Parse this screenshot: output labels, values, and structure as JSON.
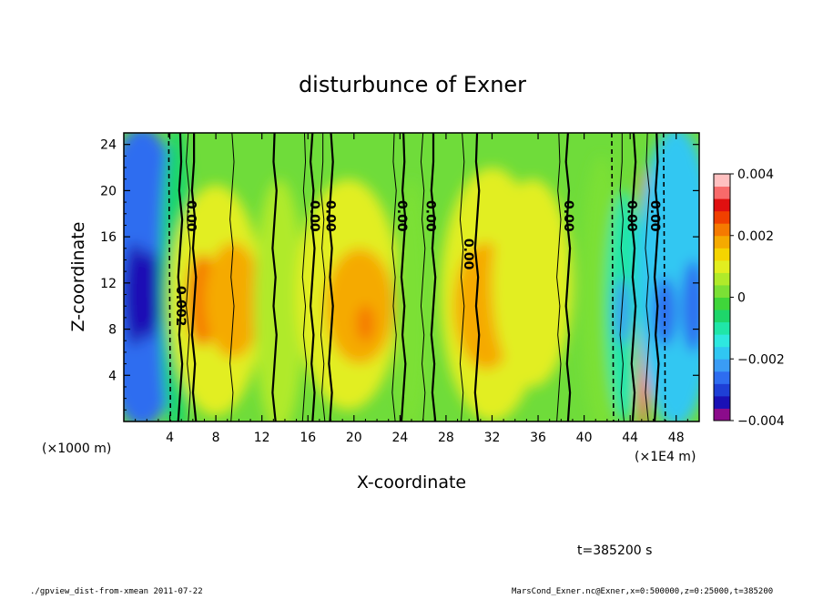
{
  "chart_data": {
    "type": "heatmap",
    "title": "disturbunce of Exner",
    "xlabel": "X-coordinate",
    "ylabel": "Z-coordinate",
    "x_unit_left": "(×1000 m)",
    "x_unit_right": "(×1E4 m)",
    "xlim": [
      0,
      50
    ],
    "ylim": [
      0,
      25
    ],
    "x_ticks": [
      4,
      8,
      12,
      16,
      20,
      24,
      28,
      32,
      36,
      40,
      44,
      48
    ],
    "x_tick_labels": [
      "4",
      "8",
      "12",
      "16",
      "20",
      "24",
      "28",
      "32",
      "36",
      "40",
      "44",
      "48"
    ],
    "y_ticks": [
      4,
      8,
      12,
      16,
      20,
      24
    ],
    "y_tick_labels": [
      "4",
      "8",
      "12",
      "16",
      "20",
      "24"
    ],
    "colorbar": {
      "range": [
        -0.004,
        0.004
      ],
      "ticks": [
        0.004,
        0.002,
        0,
        -0.002,
        -0.004
      ],
      "tick_labels": [
        "0.004",
        "0.002",
        "0",
        "−0.002",
        "−0.004"
      ],
      "colors": [
        "#8b0b8b",
        "#1a10b5",
        "#1e3fd6",
        "#2e6df0",
        "#3a9cf5",
        "#30c7f2",
        "#2ee8e0",
        "#20e6a8",
        "#1ed66a",
        "#3fd63a",
        "#7be035",
        "#b0ea2a",
        "#e2ee20",
        "#f5d400",
        "#f5aa00",
        "#f57a00",
        "#f04000",
        "#e01010",
        "#f86a6a",
        "#ffc0c0"
      ]
    },
    "contour_labels": [
      {
        "text": "0.00",
        "x": 5.5,
        "y": 17.8,
        "rot": 90
      },
      {
        "text": "0.002",
        "x": 4.6,
        "y": 10.0,
        "rot": 90
      },
      {
        "text": "0.00",
        "x": 16.2,
        "y": 17.8,
        "rot": 90
      },
      {
        "text": "0.00",
        "x": 17.6,
        "y": 17.8,
        "rot": 90
      },
      {
        "text": "0.00",
        "x": 23.8,
        "y": 17.8,
        "rot": 90
      },
      {
        "text": "0.00",
        "x": 26.3,
        "y": 17.8,
        "rot": 90
      },
      {
        "text": "0.00",
        "x": 29.6,
        "y": 14.5,
        "rot": 90
      },
      {
        "text": "0.00",
        "x": 38.3,
        "y": 17.8,
        "rot": 90
      },
      {
        "text": "0.00",
        "x": 43.8,
        "y": 17.8,
        "rot": 90
      },
      {
        "text": "0.00",
        "x": 45.8,
        "y": 17.8,
        "rot": 90
      }
    ],
    "field_blobs": [
      {
        "x": 1.6,
        "z": 12.5,
        "rx": 4.0,
        "rz": 13.0,
        "level": -0.0026
      },
      {
        "x": 1.0,
        "z": 11.0,
        "rx": 1.0,
        "rz": 4.5,
        "level": -0.0034
      },
      {
        "x": 2.3,
        "z": 11.0,
        "rx": 0.8,
        "rz": 4.0,
        "level": -0.0034
      },
      {
        "x": 3.6,
        "z": 11.5,
        "rx": 0.8,
        "rz": 3.5,
        "level": -0.0034
      },
      {
        "x": 4.6,
        "z": 12.0,
        "rx": 1.4,
        "rz": 14.0,
        "level": -0.0008
      },
      {
        "x": 8.0,
        "z": 10.5,
        "rx": 4.0,
        "rz": 10.0,
        "level": 0.0012
      },
      {
        "x": 6.8,
        "z": 10.5,
        "rx": 1.3,
        "rz": 4.0,
        "level": 0.0022
      },
      {
        "x": 9.5,
        "z": 10.5,
        "rx": 2.5,
        "rz": 5.0,
        "level": 0.0016
      },
      {
        "x": 13.5,
        "z": 10.0,
        "rx": 2.2,
        "rz": 11.0,
        "level": 0.0004
      },
      {
        "x": 19.5,
        "z": 11.0,
        "rx": 4.5,
        "rz": 10.0,
        "level": 0.001
      },
      {
        "x": 20.5,
        "z": 10.0,
        "rx": 3.0,
        "rz": 5.0,
        "level": 0.0016
      },
      {
        "x": 21.0,
        "z": 8.5,
        "rx": 0.8,
        "rz": 1.6,
        "level": 0.0022
      },
      {
        "x": 25.0,
        "z": 10.0,
        "rx": 1.5,
        "rz": 11.0,
        "level": 0.0003
      },
      {
        "x": 32.0,
        "z": 11.0,
        "rx": 4.5,
        "rz": 11.0,
        "level": 0.001
      },
      {
        "x": 31.5,
        "z": 10.0,
        "rx": 2.8,
        "rz": 5.5,
        "level": 0.0017
      },
      {
        "x": 35.5,
        "z": 10.5,
        "rx": 1.6,
        "rz": 4.0,
        "level": 0.0022
      },
      {
        "x": 35.5,
        "z": 12.0,
        "rx": 3.5,
        "rz": 9.0,
        "level": 0.0012
      },
      {
        "x": 41.5,
        "z": 11.0,
        "rx": 1.8,
        "rz": 12.0,
        "level": 0.0001
      },
      {
        "x": 43.5,
        "z": 10.0,
        "rx": 1.6,
        "rz": 10.0,
        "level": -0.001
      },
      {
        "x": 43.3,
        "z": 9.5,
        "rx": 0.7,
        "rz": 3.0,
        "level": -0.0022
      },
      {
        "x": 45.1,
        "z": 10.0,
        "rx": 0.5,
        "rz": 12.0,
        "level": 0.002
      },
      {
        "x": 45.1,
        "z": 2.5,
        "rx": 0.5,
        "rz": 2.5,
        "level": 0.0032
      },
      {
        "x": 48.0,
        "z": 12.5,
        "rx": 3.5,
        "rz": 13.0,
        "level": -0.0018
      },
      {
        "x": 47.0,
        "z": 9.5,
        "rx": 1.0,
        "rz": 3.0,
        "level": -0.0028
      },
      {
        "x": 49.5,
        "z": 10.0,
        "rx": 1.0,
        "rz": 4.0,
        "level": -0.0026
      }
    ],
    "vertical_contours_x": [
      4.9,
      5.6,
      6.1,
      9.4,
      13.1,
      15.7,
      16.4,
      17.3,
      18.0,
      23.5,
      24.3,
      26.0,
      26.9,
      29.4,
      30.7,
      37.8,
      38.6,
      43.3,
      44.3,
      45.5,
      46.3
    ],
    "dashed_contours_x": [
      3.9,
      42.4,
      46.9
    ]
  },
  "footer": {
    "time": "t=385200 s",
    "script": "./gpview_dist-from-xmean  2011-07-22",
    "source": "MarsCond_Exner.nc@Exner,x=0:500000,z=0:25000,t=385200"
  }
}
